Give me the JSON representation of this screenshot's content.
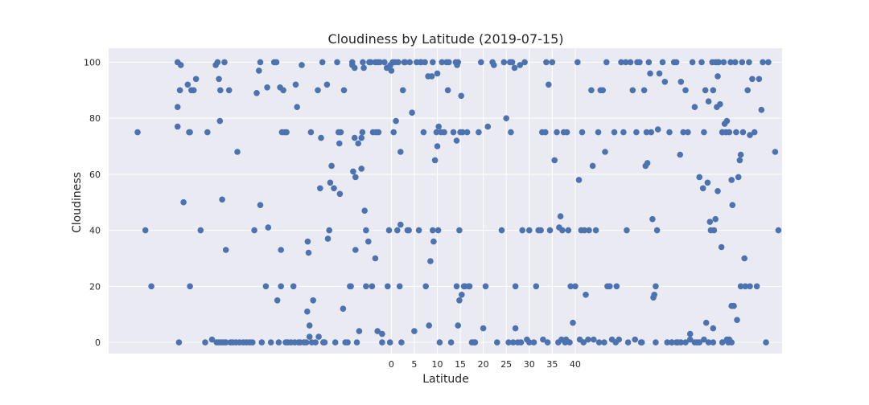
{
  "chart_data": {
    "type": "scatter",
    "title": "Cloudiness by Latitude (2019-07-15)",
    "xlabel": "Latitude",
    "ylabel": "Cloudiness",
    "xticks": [
      0,
      5,
      10,
      15,
      20,
      25,
      30,
      35,
      40
    ],
    "yticks": [
      0,
      20,
      40,
      60,
      80,
      100
    ],
    "xlim": [
      -61.5,
      85
    ],
    "ylim": [
      -4,
      105
    ],
    "grid": true,
    "color": "#4c72b0",
    "points": [
      [
        -55.2,
        75
      ],
      [
        -53.5,
        40
      ],
      [
        -52.2,
        20
      ],
      [
        -46.5,
        100
      ],
      [
        -46.5,
        84
      ],
      [
        -46.5,
        77
      ],
      [
        -46.2,
        0
      ],
      [
        -46,
        90
      ],
      [
        -45.8,
        99
      ],
      [
        -45.2,
        50
      ],
      [
        -44.3,
        92
      ],
      [
        -44,
        75
      ],
      [
        -43.8,
        75
      ],
      [
        -43.8,
        20
      ],
      [
        -43.5,
        90
      ],
      [
        -43,
        90
      ],
      [
        -42.5,
        94
      ],
      [
        -41.5,
        40
      ],
      [
        -40.5,
        0
      ],
      [
        -40,
        75
      ],
      [
        -39,
        1
      ],
      [
        -38.2,
        99
      ],
      [
        -37.8,
        100
      ],
      [
        -37.5,
        94
      ],
      [
        -37.3,
        79
      ],
      [
        -37.2,
        90
      ],
      [
        -36.8,
        51
      ],
      [
        -36.3,
        100
      ],
      [
        -36,
        33
      ],
      [
        -35.3,
        90
      ],
      [
        -38,
        0
      ],
      [
        -37.5,
        0
      ],
      [
        -37,
        0
      ],
      [
        -36.5,
        0
      ],
      [
        -36,
        0
      ],
      [
        -35,
        0
      ],
      [
        -34.5,
        0
      ],
      [
        -33.8,
        0
      ],
      [
        -33.5,
        68
      ],
      [
        -33,
        0
      ],
      [
        -32.2,
        0
      ],
      [
        -31.5,
        0
      ],
      [
        -30.8,
        0
      ],
      [
        -30.2,
        0
      ],
      [
        -29.8,
        40
      ],
      [
        -29.3,
        89
      ],
      [
        -28.8,
        97
      ],
      [
        -28.5,
        100
      ],
      [
        -28.5,
        49
      ],
      [
        -28.2,
        0
      ],
      [
        -27.3,
        20
      ],
      [
        -27,
        91
      ],
      [
        -26.8,
        41
      ],
      [
        -26.2,
        0
      ],
      [
        -25.5,
        100
      ],
      [
        -25,
        100
      ],
      [
        -24.8,
        15
      ],
      [
        -24.5,
        0
      ],
      [
        -24.2,
        91
      ],
      [
        -24,
        20
      ],
      [
        -24,
        33
      ],
      [
        -23.8,
        75
      ],
      [
        -23.5,
        90
      ],
      [
        -23.2,
        75
      ],
      [
        -23,
        0
      ],
      [
        -22.8,
        75
      ],
      [
        -22.5,
        0
      ],
      [
        -21.8,
        0
      ],
      [
        -21.3,
        20
      ],
      [
        -21,
        0
      ],
      [
        -20.8,
        92
      ],
      [
        -20.5,
        84
      ],
      [
        -20.2,
        0
      ],
      [
        -19.8,
        0
      ],
      [
        -19.5,
        99
      ],
      [
        -19,
        0
      ],
      [
        -18.5,
        0
      ],
      [
        -18.3,
        11
      ],
      [
        -18.2,
        36
      ],
      [
        -18,
        32
      ],
      [
        -17.8,
        6
      ],
      [
        -17.8,
        2
      ],
      [
        -17.5,
        75
      ],
      [
        -17.3,
        0
      ],
      [
        -17,
        15
      ],
      [
        -16.5,
        0
      ],
      [
        -16,
        90
      ],
      [
        -15.8,
        2
      ],
      [
        -15.5,
        55
      ],
      [
        -15.3,
        73
      ],
      [
        -15,
        100
      ],
      [
        -14.8,
        0
      ],
      [
        -14.5,
        0
      ],
      [
        -14,
        92
      ],
      [
        -13.8,
        37
      ],
      [
        -13.5,
        40
      ],
      [
        -13.3,
        57
      ],
      [
        -13,
        63
      ],
      [
        -12.5,
        55
      ],
      [
        -12.2,
        0
      ],
      [
        -11.8,
        100
      ],
      [
        -11.5,
        75
      ],
      [
        -11.3,
        71
      ],
      [
        -11.2,
        53
      ],
      [
        -11,
        75
      ],
      [
        -10.5,
        12
      ],
      [
        -10.3,
        90
      ],
      [
        -10,
        0
      ],
      [
        -9.5,
        0
      ],
      [
        -9,
        20
      ],
      [
        -8.8,
        20
      ],
      [
        -8.5,
        100
      ],
      [
        -8.5,
        99
      ],
      [
        -8.3,
        61
      ],
      [
        -8,
        98
      ],
      [
        -8,
        73
      ],
      [
        -7.8,
        59
      ],
      [
        -7.8,
        33
      ],
      [
        -7.5,
        0
      ],
      [
        -7.2,
        71
      ],
      [
        -7,
        4
      ],
      [
        -6.5,
        62
      ],
      [
        -6.5,
        73
      ],
      [
        -6.3,
        75
      ],
      [
        -6.2,
        100
      ],
      [
        -6,
        98
      ],
      [
        -5.8,
        47
      ],
      [
        -5.5,
        40
      ],
      [
        -5.5,
        20
      ],
      [
        -5,
        36
      ],
      [
        -4.8,
        100
      ],
      [
        -4.5,
        100
      ],
      [
        -4.2,
        20
      ],
      [
        -4,
        75
      ],
      [
        -3.5,
        100
      ],
      [
        -3.5,
        30
      ],
      [
        -3.3,
        75
      ],
      [
        -3,
        100
      ],
      [
        -3,
        4
      ],
      [
        -2.8,
        75
      ],
      [
        -2.5,
        100
      ],
      [
        -2,
        0
      ],
      [
        -2,
        3
      ],
      [
        -1.5,
        100
      ],
      [
        -1,
        98
      ],
      [
        -0.8,
        20
      ],
      [
        -0.5,
        40
      ],
      [
        -0.2,
        99
      ],
      [
        -0.3,
        0
      ],
      [
        0,
        97
      ],
      [
        0.3,
        100
      ],
      [
        0.5,
        75
      ],
      [
        0.8,
        100
      ],
      [
        1,
        79
      ],
      [
        1.3,
        40
      ],
      [
        1.5,
        100
      ],
      [
        1.8,
        20
      ],
      [
        2,
        68
      ],
      [
        2,
        42
      ],
      [
        2.2,
        0
      ],
      [
        2.5,
        90
      ],
      [
        2.8,
        100
      ],
      [
        3,
        100
      ],
      [
        3.5,
        40
      ],
      [
        3.8,
        40
      ],
      [
        4,
        100
      ],
      [
        4.5,
        82
      ],
      [
        5,
        4
      ],
      [
        5.5,
        100
      ],
      [
        6,
        40
      ],
      [
        6.3,
        100
      ],
      [
        6.5,
        100
      ],
      [
        7,
        75
      ],
      [
        7.3,
        100
      ],
      [
        7.5,
        20
      ],
      [
        8,
        95
      ],
      [
        8.2,
        6
      ],
      [
        8.5,
        29
      ],
      [
        8.8,
        95
      ],
      [
        9,
        100
      ],
      [
        9,
        40
      ],
      [
        9.2,
        36
      ],
      [
        9.5,
        65
      ],
      [
        9.8,
        75
      ],
      [
        10,
        96
      ],
      [
        10,
        70
      ],
      [
        10.2,
        40
      ],
      [
        10.3,
        77
      ],
      [
        10.5,
        0
      ],
      [
        10.8,
        75
      ],
      [
        11,
        100
      ],
      [
        11.5,
        75
      ],
      [
        12,
        100
      ],
      [
        12.3,
        90
      ],
      [
        12.5,
        100
      ],
      [
        13,
        0
      ],
      [
        13.5,
        75
      ],
      [
        14,
        100
      ],
      [
        14.2,
        20
      ],
      [
        14.2,
        72
      ],
      [
        14.3,
        99
      ],
      [
        14.5,
        100
      ],
      [
        14.5,
        6
      ],
      [
        14.8,
        40
      ],
      [
        14.8,
        15
      ],
      [
        15,
        75
      ],
      [
        15.2,
        88
      ],
      [
        15.3,
        17
      ],
      [
        15.5,
        75
      ],
      [
        15.8,
        20
      ],
      [
        16,
        20
      ],
      [
        16.5,
        75
      ],
      [
        16.8,
        20
      ],
      [
        17.5,
        0
      ],
      [
        17,
        20
      ],
      [
        18,
        0
      ],
      [
        18.2,
        0
      ],
      [
        19,
        75
      ],
      [
        19.5,
        100
      ],
      [
        20,
        5
      ],
      [
        20.5,
        20
      ],
      [
        21,
        77
      ],
      [
        22,
        100
      ],
      [
        22.3,
        99
      ],
      [
        23,
        0
      ],
      [
        24,
        40
      ],
      [
        24.5,
        100
      ],
      [
        25,
        80
      ],
      [
        25.5,
        0
      ],
      [
        25.8,
        100
      ],
      [
        26,
        75
      ],
      [
        26.3,
        100
      ],
      [
        26.5,
        0
      ],
      [
        26.8,
        98
      ],
      [
        27,
        20
      ],
      [
        27,
        5
      ],
      [
        27.5,
        0
      ],
      [
        28,
        99
      ],
      [
        28.2,
        0
      ],
      [
        28.5,
        40
      ],
      [
        29,
        100
      ],
      [
        29.5,
        1
      ],
      [
        30,
        0
      ],
      [
        30,
        40
      ],
      [
        31,
        0
      ],
      [
        31.5,
        20
      ],
      [
        32,
        40
      ],
      [
        32.5,
        40
      ],
      [
        32.8,
        75
      ],
      [
        33,
        1
      ],
      [
        33.5,
        75
      ],
      [
        33.7,
        100
      ],
      [
        34,
        0
      ],
      [
        34.2,
        92
      ],
      [
        34.5,
        40
      ],
      [
        35,
        100
      ],
      [
        35.5,
        65
      ],
      [
        36,
        75
      ],
      [
        36.3,
        0
      ],
      [
        36.5,
        41
      ],
      [
        36.8,
        45
      ],
      [
        37,
        1
      ],
      [
        37.2,
        40
      ],
      [
        37.5,
        75
      ],
      [
        37.8,
        0
      ],
      [
        38,
        1
      ],
      [
        38.2,
        75
      ],
      [
        38.5,
        40
      ],
      [
        38.8,
        0
      ],
      [
        39,
        20
      ],
      [
        39.5,
        7
      ],
      [
        40,
        20
      ],
      [
        40.5,
        100
      ],
      [
        40.8,
        58
      ],
      [
        41,
        1
      ],
      [
        41.3,
        40
      ],
      [
        41.5,
        75
      ],
      [
        41.8,
        0
      ],
      [
        42,
        40
      ],
      [
        42.3,
        17
      ],
      [
        42.8,
        1
      ],
      [
        43,
        40
      ],
      [
        43.5,
        90
      ],
      [
        43.8,
        63
      ],
      [
        44,
        1
      ],
      [
        44.5,
        40
      ],
      [
        45,
        75
      ],
      [
        45.2,
        0
      ],
      [
        45.5,
        90
      ],
      [
        46,
        90
      ],
      [
        46.3,
        0
      ],
      [
        46.5,
        68
      ],
      [
        46.8,
        100
      ],
      [
        47,
        20
      ],
      [
        47.5,
        20
      ],
      [
        48,
        1
      ],
      [
        48.5,
        75
      ],
      [
        48.8,
        0
      ],
      [
        49,
        20
      ],
      [
        49.5,
        1
      ],
      [
        50,
        100
      ],
      [
        50.5,
        75
      ],
      [
        51,
        100
      ],
      [
        51.2,
        40
      ],
      [
        51.5,
        0
      ],
      [
        52,
        100
      ],
      [
        52.5,
        90
      ],
      [
        53,
        1
      ],
      [
        53.3,
        75
      ],
      [
        53.5,
        100
      ],
      [
        54,
        100
      ],
      [
        54.3,
        0
      ],
      [
        54.5,
        0
      ],
      [
        55,
        90
      ],
      [
        55.3,
        63
      ],
      [
        55.5,
        75
      ],
      [
        55.7,
        64
      ],
      [
        56,
        100
      ],
      [
        56.3,
        96
      ],
      [
        56.5,
        75
      ],
      [
        56.8,
        44
      ],
      [
        57,
        16
      ],
      [
        57.2,
        17
      ],
      [
        57.5,
        0
      ],
      [
        57.5,
        20
      ],
      [
        57.8,
        40
      ],
      [
        58,
        76
      ],
      [
        58.3,
        96
      ],
      [
        59,
        100
      ],
      [
        59.5,
        93
      ],
      [
        60,
        0
      ],
      [
        60.5,
        75
      ],
      [
        61,
        0
      ],
      [
        61.5,
        100
      ],
      [
        62,
        100
      ],
      [
        62.3,
        0
      ],
      [
        62.8,
        67
      ],
      [
        63,
        93
      ],
      [
        63.5,
        75
      ],
      [
        64,
        90
      ],
      [
        64.5,
        75
      ],
      [
        65,
        1
      ],
      [
        65.5,
        100
      ],
      [
        66,
        84
      ],
      [
        66.5,
        0
      ],
      [
        67,
        59
      ],
      [
        67.5,
        100
      ],
      [
        67.8,
        55
      ],
      [
        68,
        75
      ],
      [
        68.3,
        90
      ],
      [
        68.5,
        7
      ],
      [
        68.8,
        57
      ],
      [
        69,
        86
      ],
      [
        69.3,
        43
      ],
      [
        69.5,
        40
      ],
      [
        69.8,
        100
      ],
      [
        70,
        90
      ],
      [
        70.2,
        40
      ],
      [
        70.5,
        44
      ],
      [
        70.8,
        84
      ],
      [
        71,
        95
      ],
      [
        71.2,
        100
      ],
      [
        71.5,
        85
      ],
      [
        71.8,
        34
      ],
      [
        72,
        75
      ],
      [
        72.3,
        100
      ],
      [
        72.5,
        78
      ],
      [
        72.8,
        75
      ],
      [
        73,
        79
      ],
      [
        73.3,
        0
      ],
      [
        73.5,
        1
      ],
      [
        73.8,
        100
      ],
      [
        74,
        58
      ],
      [
        74.2,
        49
      ],
      [
        74.5,
        13
      ],
      [
        74.8,
        100
      ],
      [
        75,
        75
      ],
      [
        75.2,
        8
      ],
      [
        75.5,
        59
      ],
      [
        75.8,
        65
      ],
      [
        76,
        67
      ],
      [
        76.3,
        100
      ],
      [
        76.5,
        75
      ],
      [
        76.8,
        30
      ],
      [
        77,
        20
      ],
      [
        77.5,
        90
      ],
      [
        77.8,
        100
      ],
      [
        78,
        74
      ],
      [
        78.5,
        94
      ],
      [
        79,
        75
      ],
      [
        79.5,
        20
      ],
      [
        80,
        94
      ],
      [
        80.5,
        83
      ],
      [
        80.8,
        100
      ],
      [
        81.5,
        0
      ],
      [
        82,
        100
      ],
      [
        61,
        0
      ],
      [
        62,
        0
      ],
      [
        63,
        0
      ],
      [
        64,
        0
      ],
      [
        65,
        3
      ],
      [
        66,
        0
      ],
      [
        72,
        0
      ],
      [
        73,
        1
      ],
      [
        74,
        0
      ],
      [
        67,
        0
      ],
      [
        69,
        0
      ],
      [
        70,
        5
      ],
      [
        71,
        54
      ],
      [
        72,
        75
      ],
      [
        73.5,
        75
      ],
      [
        74,
        13
      ],
      [
        68,
        1
      ],
      [
        70,
        0
      ],
      [
        71,
        100
      ],
      [
        83.5,
        68
      ],
      [
        84.2,
        40
      ],
      [
        76,
        20
      ],
      [
        78,
        20
      ],
      [
        70.5,
        100
      ]
    ]
  }
}
